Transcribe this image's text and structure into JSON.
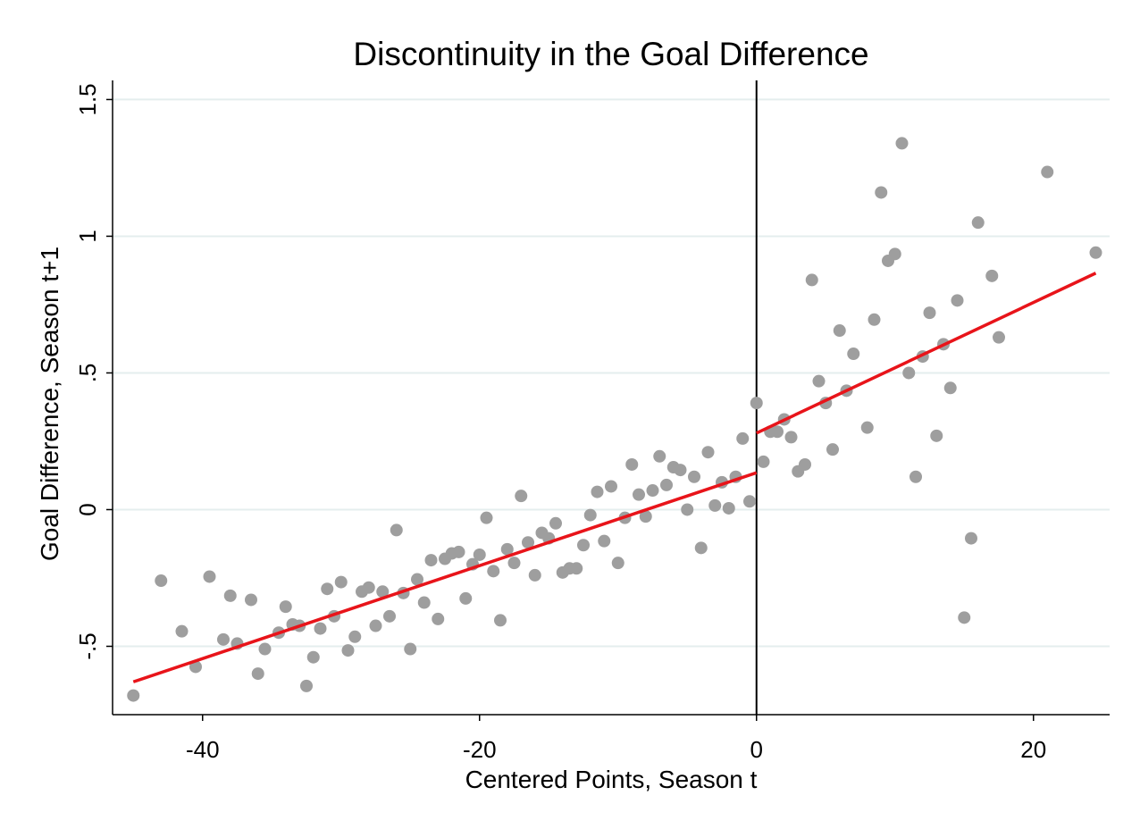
{
  "chart_data": {
    "type": "scatter",
    "title": "Discontinuity in the Goal Difference",
    "xlabel": "Centered Points, Season t",
    "ylabel": "Goal Difference, Season t+1",
    "xlim": [
      -46.5,
      25.5
    ],
    "ylim": [
      -0.75,
      1.57
    ],
    "xticks": [
      {
        "value": -40,
        "label": "-40"
      },
      {
        "value": -20,
        "label": "-20"
      },
      {
        "value": 0,
        "label": "0"
      },
      {
        "value": 20,
        "label": "20"
      }
    ],
    "yticks": [
      {
        "value": -0.5,
        "label": "-.5"
      },
      {
        "value": 0,
        "label": "0"
      },
      {
        "value": 0.5,
        "label": ".5"
      },
      {
        "value": 1,
        "label": "1"
      },
      {
        "value": 1.5,
        "label": "1.5"
      }
    ],
    "grid": "horizontal",
    "cutoff": 0,
    "colors": {
      "points": "#9e9e9e",
      "fit": "#e8141a",
      "grid": "#e4eeee",
      "axis": "#000000"
    },
    "fit_lines": [
      {
        "x": [
          -45,
          0
        ],
        "y": [
          -0.63,
          0.135
        ]
      },
      {
        "x": [
          0,
          24.5
        ],
        "y": [
          0.28,
          0.865
        ]
      }
    ],
    "points": [
      [
        -45,
        -0.68
      ],
      [
        -43,
        -0.26
      ],
      [
        -41.5,
        -0.445
      ],
      [
        -40.5,
        -0.575
      ],
      [
        -39.5,
        -0.245
      ],
      [
        -38.5,
        -0.475
      ],
      [
        -38,
        -0.315
      ],
      [
        -37.5,
        -0.49
      ],
      [
        -36.5,
        -0.33
      ],
      [
        -36,
        -0.6
      ],
      [
        -35.5,
        -0.51
      ],
      [
        -34.5,
        -0.45
      ],
      [
        -34,
        -0.355
      ],
      [
        -33.5,
        -0.42
      ],
      [
        -33,
        -0.425
      ],
      [
        -32.5,
        -0.645
      ],
      [
        -32,
        -0.54
      ],
      [
        -31.5,
        -0.435
      ],
      [
        -31,
        -0.29
      ],
      [
        -30.5,
        -0.39
      ],
      [
        -30,
        -0.265
      ],
      [
        -29.5,
        -0.515
      ],
      [
        -29,
        -0.465
      ],
      [
        -28.5,
        -0.3
      ],
      [
        -28,
        -0.285
      ],
      [
        -27.5,
        -0.425
      ],
      [
        -27,
        -0.3
      ],
      [
        -26.5,
        -0.39
      ],
      [
        -26,
        -0.075
      ],
      [
        -25.5,
        -0.305
      ],
      [
        -25,
        -0.51
      ],
      [
        -24.5,
        -0.255
      ],
      [
        -24,
        -0.34
      ],
      [
        -23.5,
        -0.185
      ],
      [
        -23,
        -0.4
      ],
      [
        -22.5,
        -0.18
      ],
      [
        -22,
        -0.16
      ],
      [
        -21.5,
        -0.155
      ],
      [
        -21,
        -0.325
      ],
      [
        -20.5,
        -0.2
      ],
      [
        -20,
        -0.165
      ],
      [
        -19.5,
        -0.03
      ],
      [
        -19,
        -0.225
      ],
      [
        -18.5,
        -0.405
      ],
      [
        -18,
        -0.145
      ],
      [
        -17.5,
        -0.195
      ],
      [
        -17,
        0.05
      ],
      [
        -16.5,
        -0.12
      ],
      [
        -16,
        -0.24
      ],
      [
        -15.5,
        -0.085
      ],
      [
        -15,
        -0.105
      ],
      [
        -14.5,
        -0.05
      ],
      [
        -14,
        -0.23
      ],
      [
        -13.5,
        -0.215
      ],
      [
        -13,
        -0.215
      ],
      [
        -12.5,
        -0.13
      ],
      [
        -12,
        -0.02
      ],
      [
        -11.5,
        0.065
      ],
      [
        -11,
        -0.115
      ],
      [
        -10.5,
        0.085
      ],
      [
        -10,
        -0.195
      ],
      [
        -9.5,
        -0.03
      ],
      [
        -9,
        0.165
      ],
      [
        -8.5,
        0.055
      ],
      [
        -8,
        -0.025
      ],
      [
        -7.5,
        0.07
      ],
      [
        -7,
        0.195
      ],
      [
        -6.5,
        0.09
      ],
      [
        -6,
        0.155
      ],
      [
        -5.5,
        0.145
      ],
      [
        -5,
        0.0
      ],
      [
        -4.5,
        0.12
      ],
      [
        -4,
        -0.14
      ],
      [
        -3.5,
        0.21
      ],
      [
        -3,
        0.015
      ],
      [
        -2.5,
        0.1
      ],
      [
        -2,
        0.005
      ],
      [
        -1.5,
        0.12
      ],
      [
        -1,
        0.26
      ],
      [
        -0.5,
        0.03
      ],
      [
        0,
        0.39
      ],
      [
        0.5,
        0.175
      ],
      [
        1,
        0.285
      ],
      [
        1.5,
        0.285
      ],
      [
        2,
        0.33
      ],
      [
        2.5,
        0.265
      ],
      [
        3,
        0.14
      ],
      [
        3.5,
        0.165
      ],
      [
        4,
        0.84
      ],
      [
        4.5,
        0.47
      ],
      [
        5,
        0.39
      ],
      [
        5.5,
        0.22
      ],
      [
        6,
        0.655
      ],
      [
        6.5,
        0.435
      ],
      [
        7,
        0.57
      ],
      [
        8,
        0.3
      ],
      [
        8.5,
        0.695
      ],
      [
        9,
        1.16
      ],
      [
        9.5,
        0.91
      ],
      [
        10,
        0.935
      ],
      [
        10.5,
        1.34
      ],
      [
        11,
        0.5
      ],
      [
        11.5,
        0.12
      ],
      [
        12,
        0.56
      ],
      [
        12.5,
        0.72
      ],
      [
        13,
        0.27
      ],
      [
        13.5,
        0.605
      ],
      [
        14,
        0.445
      ],
      [
        14.5,
        0.765
      ],
      [
        15,
        -0.395
      ],
      [
        15.5,
        -0.105
      ],
      [
        16,
        1.05
      ],
      [
        17,
        0.855
      ],
      [
        17.5,
        0.63
      ],
      [
        21,
        1.235
      ],
      [
        24.5,
        0.94
      ]
    ]
  }
}
